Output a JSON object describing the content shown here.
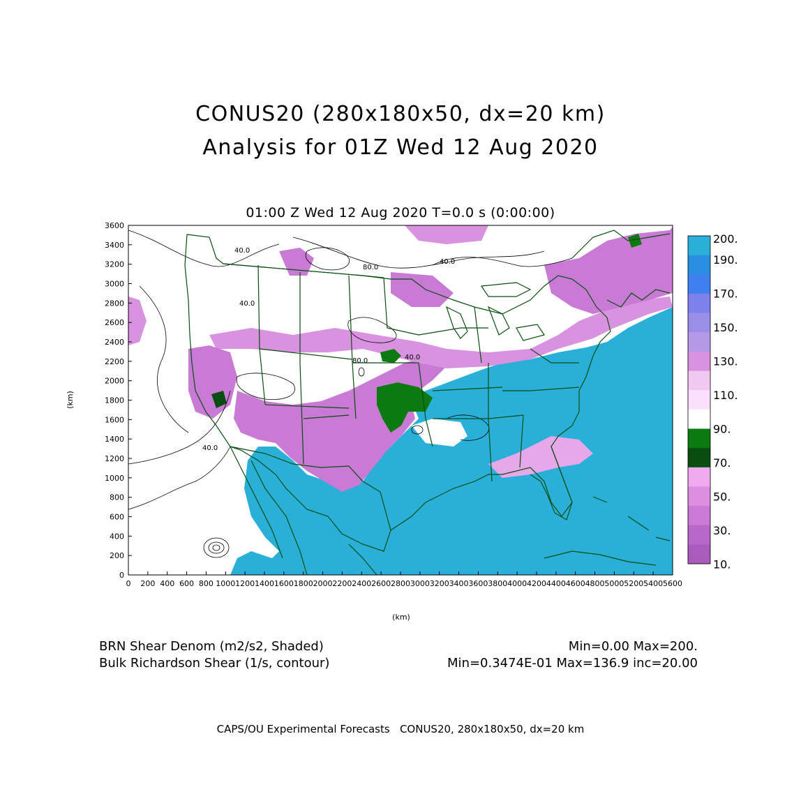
{
  "title_line1": "CONUS20 (280x180x50, dx=20 km)",
  "title_line2": "Analysis for 01Z Wed 12 Aug 2020",
  "plot_subtitle": "01:00 Z Wed 12 Aug 2020    T=0.0 s (0:00:00)",
  "axes": {
    "xlabel": "(km)",
    "ylabel": "(km)",
    "xticks": [
      "0",
      "200",
      "400",
      "600",
      "800",
      "1000",
      "1200",
      "1400",
      "1600",
      "1800",
      "2000",
      "2200",
      "2400",
      "2600",
      "2800",
      "3000",
      "3200",
      "3400",
      "3600",
      "3800",
      "4000",
      "4200",
      "4400",
      "4600",
      "4800",
      "5000",
      "5200",
      "5400",
      "5600"
    ],
    "yticks": [
      "0",
      "200",
      "400",
      "600",
      "800",
      "1000",
      "1200",
      "1400",
      "1600",
      "1800",
      "2000",
      "2200",
      "2400",
      "2600",
      "2800",
      "3000",
      "3200",
      "3400",
      "3600"
    ]
  },
  "colorbar": {
    "labels": [
      "200.",
      "190.",
      "170.",
      "150.",
      "130.",
      "110.",
      "90.",
      "70.",
      "50.",
      "30.",
      "10."
    ],
    "colors": [
      "#2ab0d8",
      "#2a8fe0",
      "#3f7ff0",
      "#7f80ec",
      "#9b8ee8",
      "#b49ae6",
      "#d892e0",
      "#f0c8f0",
      "#fbe0fb",
      "#ffffff",
      "#0b7a10",
      "#0a4d10",
      "#f0a8ee",
      "#dd8ee0",
      "#c87ad4",
      "#b868c8",
      "#a95cbc"
    ]
  },
  "contour_labels": [
    "40.0",
    "80.0",
    "40.0",
    "40.0",
    "80.0",
    "40.0",
    "40.0"
  ],
  "footer": {
    "shaded_name": "BRN Shear Denom (m2/s2, Shaded)",
    "shaded_stats": "Min=0.00 Max=200.",
    "contour_name": "Bulk Richardson Shear (1/s, contour)",
    "contour_stats": "Min=0.3474E-01 Max=136.9 inc=20.00"
  },
  "credit": "CAPS/OU Experimental Forecasts   CONUS20, 280x180x50, dx=20 km"
}
